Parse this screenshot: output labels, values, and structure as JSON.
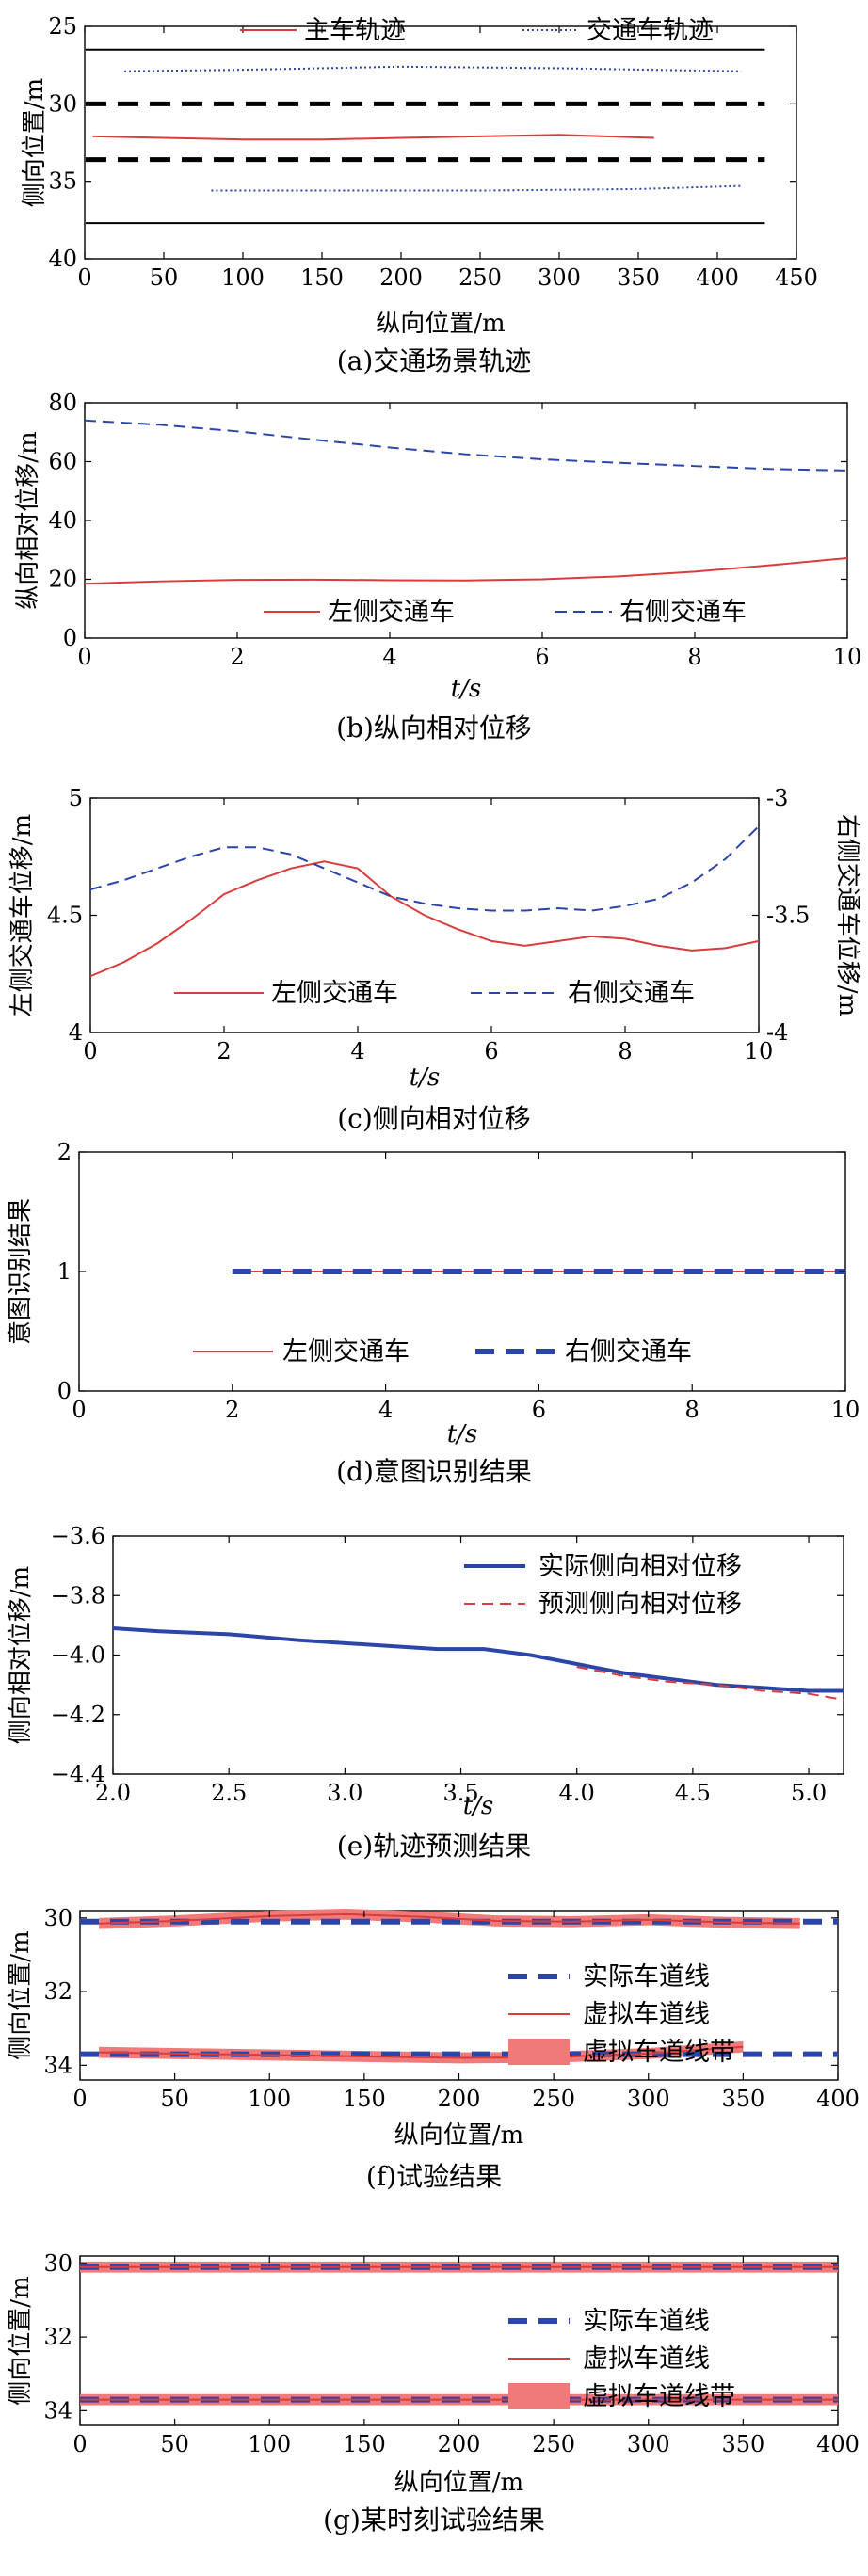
{
  "chart_data": [
    {
      "id": "a",
      "type": "line",
      "caption": "(a)交通场景轨迹",
      "xlabel": "纵向位置/m",
      "ylabel": "侧向位置/m",
      "xlim": [
        0,
        450
      ],
      "ylim": [
        40,
        25
      ],
      "y_reversed": true,
      "xticks": [
        0,
        50,
        100,
        150,
        200,
        250,
        300,
        350,
        400,
        450
      ],
      "yticks": [
        25,
        30,
        35,
        40
      ],
      "legend": {
        "placement": "top",
        "entries": [
          "主车轨迹",
          "交通车轨迹"
        ]
      },
      "colors": {
        "host": "#d93c3c",
        "traffic": "#2b45a8",
        "lane": "#000000"
      },
      "series": [
        {
          "name": "主车轨迹",
          "style": "solid-red",
          "x": [
            5,
            50,
            100,
            150,
            200,
            250,
            300,
            360
          ],
          "y": [
            32.1,
            32.2,
            32.3,
            32.3,
            32.2,
            32.1,
            32.0,
            32.2
          ]
        },
        {
          "name": "交通车轨迹",
          "style": "dotted-blue",
          "x": [
            25,
            100,
            200,
            300,
            415
          ],
          "y": [
            27.9,
            27.8,
            27.6,
            27.7,
            27.9
          ]
        },
        {
          "name": "交通车轨迹",
          "style": "dotted-blue",
          "x": [
            80,
            150,
            250,
            350,
            415
          ],
          "y": [
            35.6,
            35.6,
            35.6,
            35.5,
            35.3
          ]
        }
      ],
      "lane_lines": [
        {
          "style": "solid",
          "y": 26.5
        },
        {
          "style": "dashed",
          "y": 30
        },
        {
          "style": "dashed",
          "y": 33.6
        },
        {
          "style": "solid",
          "y": 37.7
        }
      ]
    },
    {
      "id": "b",
      "type": "line",
      "caption": "(b)纵向相对位移",
      "xlabel": "t/s",
      "ylabel": "纵向相对位移/m",
      "xlim": [
        0,
        10
      ],
      "ylim": [
        0,
        80
      ],
      "xticks": [
        0,
        2,
        4,
        6,
        8,
        10
      ],
      "yticks": [
        0,
        20,
        40,
        60,
        80
      ],
      "legend": {
        "placement": "bottom",
        "entries": [
          "左侧交通车",
          "右侧交通车"
        ]
      },
      "series": [
        {
          "name": "左侧交通车",
          "style": "solid-red",
          "x": [
            0,
            1,
            2,
            3,
            4,
            5,
            6,
            7,
            8,
            9,
            10
          ],
          "y": [
            18.5,
            19.3,
            19.8,
            19.9,
            19.7,
            19.6,
            20.0,
            21.0,
            22.6,
            24.8,
            27.2
          ]
        },
        {
          "name": "右侧交通车",
          "style": "dashed-blue",
          "x": [
            0,
            1,
            2,
            3,
            4,
            5,
            6,
            7,
            8,
            9,
            10
          ],
          "y": [
            74,
            72.5,
            70.3,
            67.5,
            64.8,
            62.5,
            60.8,
            59.6,
            58.5,
            57.5,
            57
          ]
        }
      ]
    },
    {
      "id": "c",
      "type": "line",
      "caption": "(c)侧向相对位移",
      "xlabel": "t/s",
      "ylabel": "左侧交通车位移/m",
      "ylabel_right": "右侧交通车位移/m",
      "xlim": [
        0,
        10
      ],
      "ylim": [
        4.0,
        5.0
      ],
      "ylim_right": [
        -4.0,
        -3.0
      ],
      "xticks": [
        0,
        2,
        4,
        6,
        8,
        10
      ],
      "yticks": [
        4.0,
        4.5,
        5.0
      ],
      "yticks_right": [
        -4.0,
        -3.5,
        -3.0
      ],
      "legend": {
        "placement": "bottom",
        "entries": [
          "左侧交通车",
          "右侧交通车"
        ]
      },
      "series": [
        {
          "name": "左侧交通车",
          "axis": "left",
          "style": "solid-red",
          "x": [
            0,
            0.5,
            1,
            1.5,
            2,
            2.5,
            3,
            3.5,
            4,
            4.5,
            5,
            5.5,
            6,
            6.5,
            7,
            7.5,
            8,
            8.5,
            9,
            9.5,
            10
          ],
          "y": [
            4.24,
            4.3,
            4.38,
            4.48,
            4.59,
            4.65,
            4.7,
            4.73,
            4.7,
            4.58,
            4.5,
            4.44,
            4.39,
            4.37,
            4.39,
            4.41,
            4.4,
            4.37,
            4.35,
            4.36,
            4.39
          ]
        },
        {
          "name": "右侧交通车",
          "axis": "right",
          "style": "dashed-blue",
          "x": [
            0,
            0.5,
            1,
            1.5,
            2,
            2.5,
            3,
            3.5,
            4,
            4.5,
            5,
            5.5,
            6,
            6.5,
            7,
            7.5,
            8,
            8.5,
            9,
            9.5,
            10
          ],
          "y": [
            -3.39,
            -3.35,
            -3.3,
            -3.25,
            -3.21,
            -3.21,
            -3.24,
            -3.3,
            -3.36,
            -3.42,
            -3.45,
            -3.47,
            -3.48,
            -3.48,
            -3.47,
            -3.48,
            -3.46,
            -3.43,
            -3.36,
            -3.26,
            -3.12
          ]
        }
      ]
    },
    {
      "id": "d",
      "type": "line",
      "caption": "(d)意图识别结果",
      "xlabel": "t/s",
      "ylabel": "意图识别结果",
      "xlim": [
        0,
        10
      ],
      "ylim": [
        0,
        2
      ],
      "xticks": [
        0,
        2,
        4,
        6,
        8,
        10
      ],
      "yticks": [
        0,
        1,
        2
      ],
      "legend": {
        "placement": "bottom",
        "entries": [
          "左侧交通车",
          "右侧交通车"
        ]
      },
      "series": [
        {
          "name": "左侧交通车",
          "style": "solid-red",
          "x": [
            2,
            10
          ],
          "y": [
            1,
            1
          ]
        },
        {
          "name": "右侧交通车",
          "style": "thick-dashed-blue",
          "x": [
            2,
            10
          ],
          "y": [
            1,
            1
          ]
        }
      ]
    },
    {
      "id": "e",
      "type": "line",
      "caption": "(e)轨迹预测结果",
      "xlabel": "t/s",
      "ylabel": "侧向相对位移/m",
      "xlim": [
        2.0,
        5.15
      ],
      "ylim": [
        -4.4,
        -3.6
      ],
      "xticks": [
        2.0,
        2.5,
        3.0,
        3.5,
        4.0,
        4.5,
        5.0
      ],
      "yticks": [
        -3.6,
        -3.8,
        -4.0,
        -4.2,
        -4.4
      ],
      "xtick_labels": [
        "2.0",
        "2.5",
        "3.0",
        "3.5",
        "4.0",
        "4.5",
        "5.0"
      ],
      "ytick_labels": [
        "−3.6",
        "−3.8",
        "−4.0",
        "−4.2",
        "−4.4"
      ],
      "legend": {
        "placement": "top-right",
        "entries": [
          "实际侧向相对位移",
          "预测侧向相对位移"
        ]
      },
      "series": [
        {
          "name": "实际侧向相对位移",
          "style": "thick-solid-blue",
          "x": [
            2.0,
            2.2,
            2.5,
            2.8,
            3.0,
            3.2,
            3.4,
            3.6,
            3.8,
            4.0,
            4.2,
            4.4,
            4.6,
            4.8,
            5.0,
            5.15
          ],
          "y": [
            -3.91,
            -3.92,
            -3.93,
            -3.95,
            -3.96,
            -3.97,
            -3.98,
            -3.98,
            -4.0,
            -4.03,
            -4.06,
            -4.08,
            -4.1,
            -4.11,
            -4.12,
            -4.12
          ]
        },
        {
          "name": "预测侧向相对位移",
          "style": "dashed-red",
          "x": [
            4.0,
            4.2,
            4.4,
            4.6,
            4.8,
            5.0,
            5.15
          ],
          "y": [
            -4.04,
            -4.07,
            -4.09,
            -4.1,
            -4.12,
            -4.13,
            -4.15
          ]
        }
      ]
    },
    {
      "id": "f",
      "type": "line",
      "caption": "(f)试验结果",
      "xlabel": "纵向位置/m",
      "ylabel": "侧向位置/m",
      "xlim": [
        0,
        400
      ],
      "ylim": [
        34.4,
        29.8
      ],
      "y_reversed": true,
      "xticks": [
        0,
        50,
        100,
        150,
        200,
        250,
        300,
        350,
        400
      ],
      "yticks": [
        30,
        32,
        34
      ],
      "legend": {
        "placement": "right",
        "entries": [
          "实际车道线",
          "虚拟车道线",
          "虚拟车道线带"
        ]
      },
      "series": [
        {
          "name": "实际车道线",
          "style": "thick-dashed-blue",
          "x": [
            0,
            400
          ],
          "y": [
            30.1,
            30.1
          ]
        },
        {
          "name": "实际车道线",
          "style": "thick-dashed-blue",
          "x": [
            0,
            400
          ],
          "y": [
            33.7,
            33.7
          ]
        },
        {
          "name": "虚拟车道线",
          "style": "solid-red",
          "x": [
            10,
            50,
            100,
            140,
            180,
            220,
            260,
            300,
            340,
            380
          ],
          "y": [
            30.15,
            30.08,
            29.95,
            29.9,
            29.97,
            30.08,
            30.1,
            30.05,
            30.12,
            30.15
          ]
        },
        {
          "name": "虚拟车道线",
          "style": "solid-red",
          "x": [
            10,
            50,
            100,
            150,
            200,
            250,
            300,
            350
          ],
          "y": [
            33.65,
            33.68,
            33.72,
            33.76,
            33.8,
            33.78,
            33.68,
            33.5
          ]
        }
      ],
      "bands": [
        {
          "name": "虚拟车道线带",
          "x": [
            10,
            50,
            100,
            140,
            180,
            220,
            260,
            300,
            340,
            380
          ],
          "center": [
            30.15,
            30.08,
            29.95,
            29.9,
            29.97,
            30.08,
            30.1,
            30.05,
            30.12,
            30.15
          ],
          "half_width": 0.15
        },
        {
          "name": "虚拟车道线带",
          "x": [
            10,
            50,
            100,
            150,
            200,
            250,
            300,
            350
          ],
          "center": [
            33.65,
            33.68,
            33.72,
            33.76,
            33.8,
            33.78,
            33.68,
            33.5
          ],
          "half_width": 0.15
        }
      ]
    },
    {
      "id": "g",
      "type": "line",
      "caption": "(g)某时刻试验结果",
      "xlabel": "纵向位置/m",
      "ylabel": "侧向位置/m",
      "xlim": [
        0,
        400
      ],
      "ylim": [
        34.4,
        29.8
      ],
      "y_reversed": true,
      "xticks": [
        0,
        50,
        100,
        150,
        200,
        250,
        300,
        350,
        400
      ],
      "yticks": [
        30,
        32,
        34
      ],
      "legend": {
        "placement": "right",
        "entries": [
          "实际车道线",
          "虚拟车道线",
          "虚拟车道线带"
        ]
      },
      "series": [
        {
          "name": "实际车道线",
          "style": "thick-dashed-blue",
          "x": [
            0,
            400
          ],
          "y": [
            30.1,
            30.1
          ]
        },
        {
          "name": "实际车道线",
          "style": "thick-dashed-blue",
          "x": [
            0,
            400
          ],
          "y": [
            33.7,
            33.7
          ]
        },
        {
          "name": "虚拟车道线",
          "style": "solid-red",
          "x": [
            0,
            400
          ],
          "y": [
            30.1,
            30.1
          ]
        },
        {
          "name": "虚拟车道线",
          "style": "solid-red",
          "x": [
            0,
            400
          ],
          "y": [
            33.7,
            33.7
          ]
        }
      ],
      "bands": [
        {
          "name": "虚拟车道线带",
          "x": [
            0,
            400
          ],
          "center": [
            30.1,
            30.1
          ],
          "half_width": 0.15
        },
        {
          "name": "虚拟车道线带",
          "x": [
            0,
            400
          ],
          "center": [
            33.7,
            33.7
          ],
          "half_width": 0.15
        }
      ]
    }
  ]
}
